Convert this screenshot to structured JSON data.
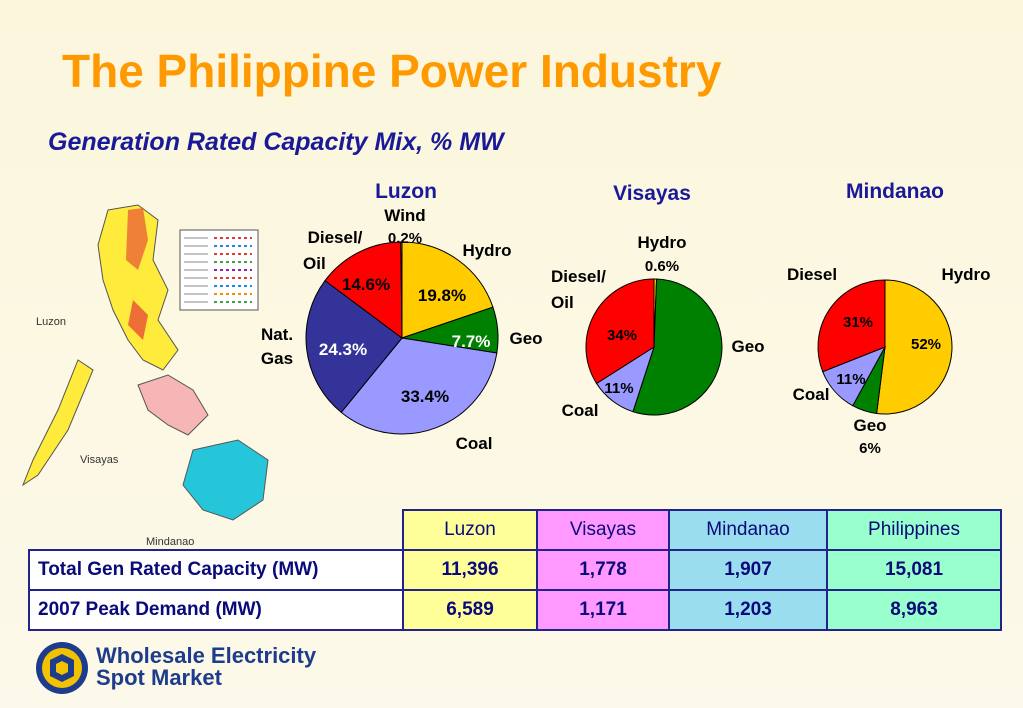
{
  "title": "The Philippine Power Industry",
  "subtitle": "Generation Rated Capacity Mix, % MW",
  "map": {
    "labels": [
      "Luzon",
      "Visayas",
      "Mindanao"
    ]
  },
  "chart_data": [
    {
      "type": "pie",
      "title": "Luzon",
      "slices": [
        {
          "label": "Hydro",
          "value": 19.8,
          "value_label": "19.8%",
          "color": "#ffcc00"
        },
        {
          "label": "Geo",
          "value": 7.7,
          "value_label": "7.7%",
          "color": "#008000"
        },
        {
          "label": "Coal",
          "value": 33.4,
          "value_label": "33.4%",
          "color": "#9999ff"
        },
        {
          "label": "Nat. Gas",
          "value": 24.3,
          "value_label": "24.3%",
          "color": "#333399"
        },
        {
          "label": "Diesel/ Oil",
          "value": 14.6,
          "value_label": "14.6%",
          "color": "#ff0000"
        },
        {
          "label": "Wind",
          "value": 0.2,
          "value_label": "0.2%",
          "color": "#ffffff"
        }
      ]
    },
    {
      "type": "pie",
      "title": "Visayas",
      "slices": [
        {
          "label": "Hydro",
          "value": 0.6,
          "value_label": "0.6%",
          "color": "#ffcc00"
        },
        {
          "label": "Geo",
          "value": 54.4,
          "value_label": "",
          "color": "#008000"
        },
        {
          "label": "Coal",
          "value": 11,
          "value_label": "11%",
          "color": "#9999ff"
        },
        {
          "label": "Diesel/ Oil",
          "value": 34,
          "value_label": "34%",
          "color": "#ff0000"
        }
      ]
    },
    {
      "type": "pie",
      "title": "Mindanao",
      "slices": [
        {
          "label": "Hydro",
          "value": 52,
          "value_label": "52%",
          "color": "#ffcc00"
        },
        {
          "label": "Geo",
          "value": 6,
          "value_label": "6%",
          "color": "#008000"
        },
        {
          "label": "Coal",
          "value": 11,
          "value_label": "11%",
          "color": "#9999ff"
        },
        {
          "label": "Diesel",
          "value": 31,
          "value_label": "31%",
          "color": "#ff0000"
        }
      ]
    },
    {
      "type": "table",
      "columns": [
        "Luzon",
        "Visayas",
        "Mindanao",
        "Philippines"
      ],
      "rows": [
        {
          "label": "Total Gen Rated Capacity (MW)",
          "values": [
            "11,396",
            "1,778",
            "1,907",
            "15,081"
          ]
        },
        {
          "label": "2007 Peak Demand (MW)",
          "values": [
            "6,589",
            "1,171",
            "1,203",
            "8,963"
          ]
        }
      ]
    }
  ],
  "logo": {
    "line1": "Wholesale Electricity",
    "line2": "Spot Market"
  }
}
